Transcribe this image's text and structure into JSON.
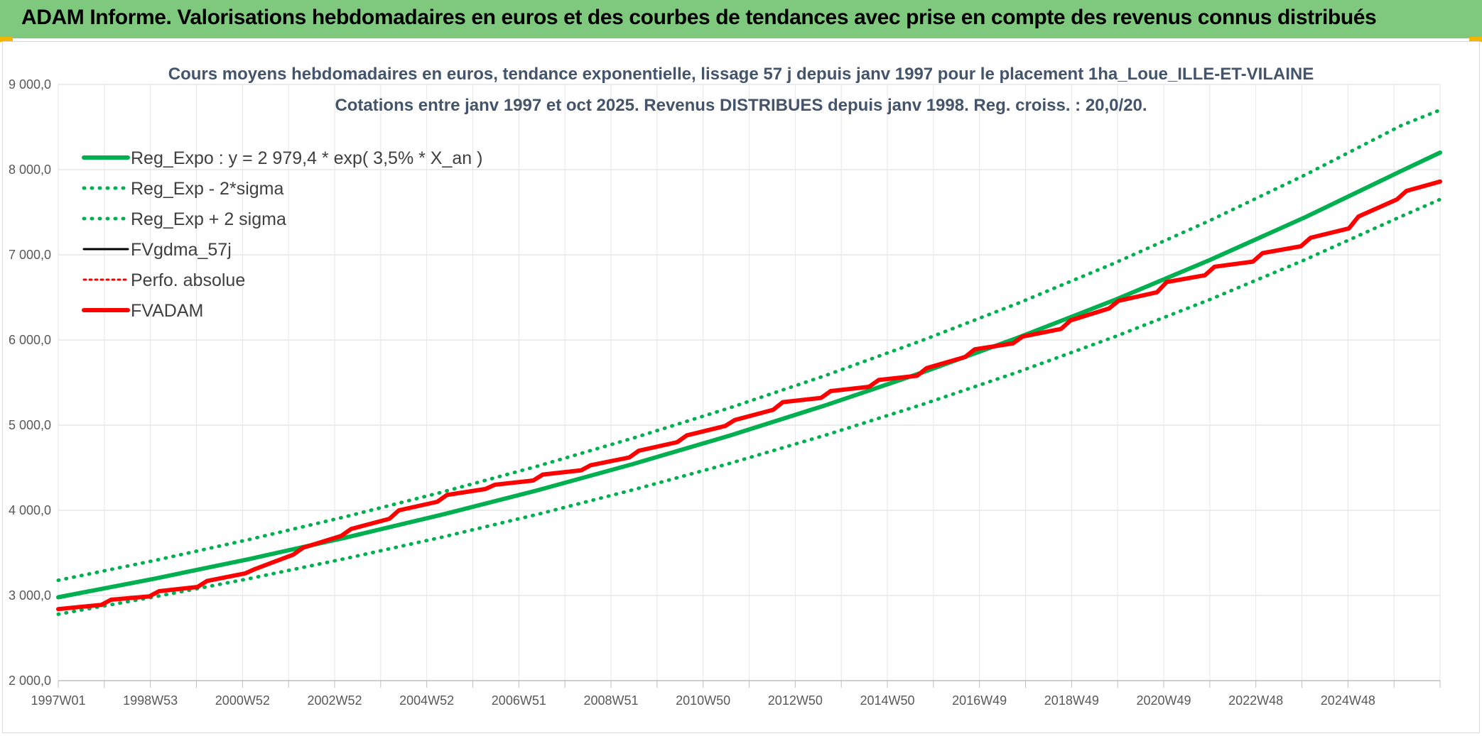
{
  "header": {
    "title": "ADAM Informe. Valorisations hebdomadaires en euros et des courbes de tendances avec prise en compte des revenus connus distribués"
  },
  "colors": {
    "banner": "#7fc97f",
    "regression": "#00b050",
    "moving_average": "#000000",
    "fvadam": "#ff0000",
    "perfo": "#ff0000",
    "grid": "#d9d9d9"
  },
  "chart_data": {
    "type": "line",
    "title": "Cours moyens hebdomadaires en euros, tendance exponentielle, lissage 57 j depuis janv 1997 pour le placement 1ha_Loue_ILLE-ET-VILAINE",
    "subtitle": "Cotations entre janv 1997 et oct 2025. Revenus DISTRIBUES depuis janv 1998. Reg. croiss. : 20,0/20.",
    "xlabel": "",
    "ylabel": "",
    "x_ticks": [
      "1997W01",
      "1998W53",
      "2000W52",
      "2002W52",
      "2004W52",
      "2006W51",
      "2008W51",
      "2010W50",
      "2012W50",
      "2014W50",
      "2016W49",
      "2018W49",
      "2020W49",
      "2022W48",
      "2024W48"
    ],
    "x_range": [
      1997.0,
      2025.8
    ],
    "y_ticks": [
      "2 000,0",
      "3 000,0",
      "4 000,0",
      "5 000,0",
      "6 000,0",
      "7 000,0",
      "8 000,0",
      "9 000,0"
    ],
    "ylim": [
      2000,
      9000
    ],
    "grid": true,
    "legend_position": "top-left",
    "series": [
      {
        "name": "Reg_Expo : y = 2 979,4 * exp( 3,5% *  X_an )",
        "style": "solid-thick",
        "x": [
          1997,
          1999,
          2001,
          2003,
          2005,
          2007,
          2009,
          2011,
          2013,
          2015,
          2017,
          2019,
          2021,
          2023,
          2025,
          2025.8
        ],
        "values": [
          2979,
          3197,
          3430,
          3681,
          3949,
          4237,
          4547,
          4878,
          5235,
          5617,
          6027,
          6466,
          6938,
          7444,
          7987,
          8200
        ]
      },
      {
        "name": "Reg_Exp - 2*sigma",
        "style": "dotted",
        "x": [
          1997,
          1999,
          2001,
          2003,
          2005,
          2007,
          2009,
          2011,
          2013,
          2015,
          2017,
          2019,
          2021,
          2023,
          2025,
          2025.8
        ],
        "values": [
          2780,
          2983,
          3200,
          3435,
          3685,
          3954,
          4243,
          4552,
          4884,
          5241,
          5623,
          6034,
          6474,
          6946,
          7453,
          7650
        ]
      },
      {
        "name": "Reg_Exp + 2 sigma",
        "style": "dotted",
        "x": [
          1997,
          1999,
          2001,
          2003,
          2005,
          2007,
          2009,
          2011,
          2013,
          2015,
          2017,
          2019,
          2021,
          2023,
          2025,
          2025.8
        ],
        "values": [
          3178,
          3410,
          3660,
          3927,
          4213,
          4520,
          4851,
          5204,
          5585,
          5993,
          6430,
          6899,
          7402,
          7942,
          8521,
          8700
        ]
      },
      {
        "name": "FVgdma_57j",
        "style": "solid-thin",
        "x": [
          1997,
          1997.9,
          1998.1,
          1998.9,
          1999.1,
          1999.9,
          2000.1,
          2000.9,
          2001.1,
          2001.9,
          2002.1,
          2002.9,
          2003.1,
          2003.9,
          2004.1,
          2004.9,
          2005.1,
          2005.9,
          2006.1,
          2006.9,
          2007.1,
          2007.9,
          2008.1,
          2008.9,
          2009.1,
          2009.9,
          2010.1,
          2010.9,
          2011.1,
          2011.9,
          2012.1,
          2012.9,
          2013.1,
          2013.9,
          2014.1,
          2014.9,
          2015.1,
          2015.9,
          2016.1,
          2016.9,
          2017.1,
          2017.9,
          2018.1,
          2018.9,
          2019.1,
          2019.9,
          2020.1,
          2020.9,
          2021.1,
          2021.9,
          2022.1,
          2022.9,
          2023.1,
          2023.9,
          2024.1,
          2024.9,
          2025.1,
          2025.8
        ],
        "values": [
          2840,
          2890,
          2950,
          2990,
          3050,
          3100,
          3170,
          3260,
          3310,
          3480,
          3560,
          3700,
          3780,
          3900,
          4000,
          4100,
          4180,
          4250,
          4300,
          4350,
          4420,
          4470,
          4530,
          4620,
          4700,
          4800,
          4880,
          4990,
          5060,
          5180,
          5270,
          5320,
          5400,
          5450,
          5530,
          5580,
          5670,
          5800,
          5890,
          5960,
          6040,
          6130,
          6230,
          6370,
          6460,
          6560,
          6680,
          6760,
          6860,
          6920,
          7020,
          7100,
          7200,
          7310,
          7450,
          7650,
          7750,
          7860
        ]
      },
      {
        "name": "Perfo. absolue",
        "style": "dotted",
        "x": [],
        "values": []
      },
      {
        "name": "FVADAM",
        "style": "solid-thick",
        "x": [
          1997,
          1997.9,
          1998.1,
          1998.9,
          1999.1,
          1999.9,
          2000.1,
          2000.9,
          2001.1,
          2001.9,
          2002.1,
          2002.9,
          2003.1,
          2003.9,
          2004.1,
          2004.9,
          2005.1,
          2005.9,
          2006.1,
          2006.9,
          2007.1,
          2007.9,
          2008.1,
          2008.9,
          2009.1,
          2009.9,
          2010.1,
          2010.9,
          2011.1,
          2011.9,
          2012.1,
          2012.9,
          2013.1,
          2013.9,
          2014.1,
          2014.9,
          2015.1,
          2015.9,
          2016.1,
          2016.9,
          2017.1,
          2017.9,
          2018.1,
          2018.9,
          2019.1,
          2019.9,
          2020.1,
          2020.9,
          2021.1,
          2021.9,
          2022.1,
          2022.9,
          2023.1,
          2023.9,
          2024.1,
          2024.9,
          2025.1,
          2025.8
        ],
        "values": [
          2840,
          2890,
          2950,
          2990,
          3050,
          3100,
          3170,
          3260,
          3310,
          3480,
          3560,
          3700,
          3780,
          3900,
          4000,
          4100,
          4180,
          4250,
          4300,
          4350,
          4420,
          4470,
          4530,
          4620,
          4700,
          4800,
          4880,
          4990,
          5060,
          5180,
          5270,
          5320,
          5400,
          5450,
          5530,
          5580,
          5670,
          5800,
          5890,
          5960,
          6040,
          6130,
          6230,
          6370,
          6460,
          6560,
          6680,
          6760,
          6860,
          6920,
          7020,
          7100,
          7200,
          7310,
          7450,
          7650,
          7750,
          7860
        ]
      }
    ]
  }
}
